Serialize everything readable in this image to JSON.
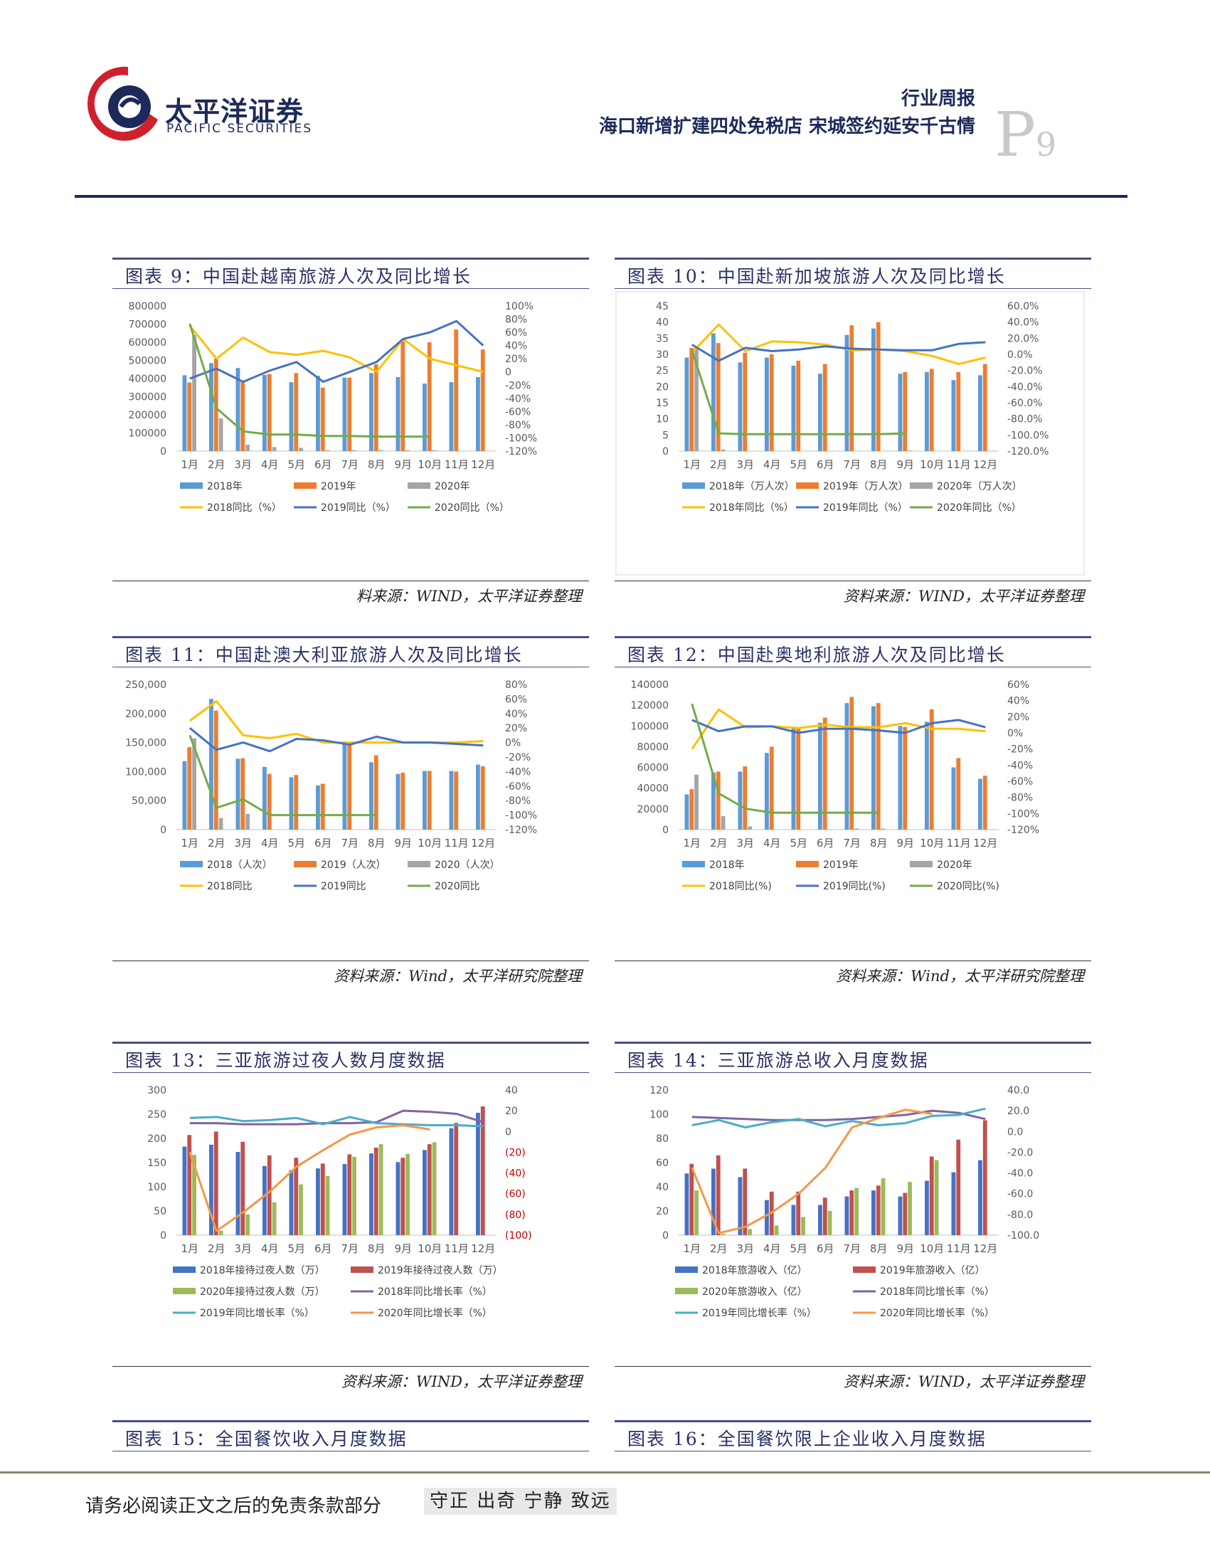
{
  "header": {
    "brand_cn": "太平洋证券",
    "brand_en": "PACIFIC SECURITIES",
    "report_type": "行业周报",
    "report_title": "海口新增扩建四处免税店 宋城签约延安千古情",
    "page_letter": "P",
    "page_number": "9",
    "brand_colors": {
      "navy": "#1c2a5a",
      "red": "#d0202e"
    }
  },
  "charts": [
    {
      "id": "chart9",
      "title": "图表 9：中国赴越南旅游人次及同比增长",
      "source": "料来源：WIND，太平洋证券整理",
      "chart_data": {
        "type": "bar",
        "categories": [
          "1月",
          "2月",
          "3月",
          "4月",
          "5月",
          "6月",
          "7月",
          "8月",
          "9月",
          "10月",
          "11月",
          "12月"
        ],
        "y_left": {
          "range": [
            0,
            800000
          ],
          "ticks": [
            "800000",
            "700000",
            "600000",
            "500000",
            "400000",
            "300000",
            "200000",
            "100000",
            "0"
          ]
        },
        "y_right": {
          "range": [
            -120,
            100
          ],
          "ticks": [
            "100%",
            "80%",
            "60%",
            "40%",
            "20%",
            "0",
            "-20%",
            "-40%",
            "-60%",
            "-80%",
            "-100%",
            "-120%"
          ]
        },
        "bars": [
          {
            "name": "2018年",
            "color": "#5b9bd5",
            "values": [
              418000,
              485000,
              458000,
              420000,
              380000,
              415000,
              405000,
              430000,
              408000,
              372000,
              380000,
              408000
            ]
          },
          {
            "name": "2019年",
            "color": "#ed7d31",
            "values": [
              378000,
              510000,
              385000,
              425000,
              430000,
              350000,
              405000,
              478000,
              605000,
              600000,
              670000,
              560000
            ]
          },
          {
            "name": "2020年",
            "color": "#a5a5a5",
            "values": [
              640000,
              180000,
              35000,
              22000,
              18000,
              5000,
              5000,
              5000,
              5000,
              5000,
              null,
              null
            ]
          }
        ],
        "lines": [
          {
            "name": "2018同比（%）",
            "color": "#ffc000",
            "values": [
              70,
              20,
              52,
              30,
              26,
              32,
              22,
              0,
              50,
              20,
              10,
              0
            ]
          },
          {
            "name": "2019同比（%）",
            "color": "#4472c4",
            "values": [
              -10,
              5,
              -15,
              2,
              15,
              -15,
              0,
              15,
              50,
              60,
              77,
              40
            ]
          },
          {
            "name": "2020同比（%）",
            "color": "#70ad47",
            "values": [
              73,
              -55,
              -90,
              -95,
              -95,
              -97,
              -97,
              -98,
              -98,
              -98,
              null,
              null
            ]
          }
        ]
      }
    },
    {
      "id": "chart10",
      "title": "图表 10：中国赴新加坡旅游人次及同比增长",
      "source": "资料来源：WIND，太平洋证券整理",
      "chart_data": {
        "type": "bar",
        "categories": [
          "1月",
          "2月",
          "3月",
          "4月",
          "5月",
          "6月",
          "7月",
          "8月",
          "9月",
          "10月",
          "11月",
          "12月"
        ],
        "y_left": {
          "range": [
            0,
            45
          ],
          "ticks": [
            "45",
            "40",
            "35",
            "30",
            "25",
            "20",
            "15",
            "10",
            "5",
            "0"
          ]
        },
        "y_right": {
          "range": [
            -120,
            60
          ],
          "ticks": [
            "60.0%",
            "40.0%",
            "20.0%",
            "0.0%",
            "-20.0%",
            "-40.0%",
            "-60.0%",
            "-80.0%",
            "-100.0%",
            "-120.0%"
          ]
        },
        "bars": [
          {
            "name": "2018年（万人次）",
            "color": "#5b9bd5",
            "values": [
              29.0,
              36.5,
              27.5,
              29.0,
              26.5,
              24.0,
              36.0,
              38.0,
              24.0,
              24.5,
              22.0,
              23.5
            ]
          },
          {
            "name": "2019年（万人次）",
            "color": "#ed7d31",
            "values": [
              32.0,
              33.5,
              30.5,
              30.0,
              28.0,
              27.0,
              39.0,
              40.0,
              24.5,
              25.5,
              24.5,
              27.0
            ]
          },
          {
            "name": "2020年（万人次）",
            "color": "#a5a5a5",
            "values": [
              32.5,
              0.5,
              null,
              null,
              null,
              null,
              null,
              null,
              0.2,
              null,
              null,
              null
            ]
          }
        ],
        "lines": [
          {
            "name": "2018年同比（%）",
            "color": "#ffc000",
            "values": [
              2,
              37,
              4,
              16,
              15,
              12,
              5,
              6,
              4,
              -2,
              -12,
              -4
            ]
          },
          {
            "name": "2019年同比（%）",
            "color": "#4472c4",
            "values": [
              12,
              -8,
              8,
              4,
              6,
              10,
              7,
              6,
              5,
              5,
              13,
              15
            ]
          },
          {
            "name": "2020年同比（%）",
            "color": "#70ad47",
            "values": [
              5,
              -98,
              -99,
              -99,
              -99,
              -99,
              -99,
              -99,
              -98,
              null,
              null,
              null
            ]
          }
        ]
      }
    },
    {
      "id": "chart11",
      "title": "图表 11：中国赴澳大利亚旅游人次及同比增长",
      "source": "资料来源：Wind，太平洋研究院整理",
      "chart_data": {
        "type": "bar",
        "categories": [
          "1月",
          "2月",
          "3月",
          "4月",
          "5月",
          "6月",
          "7月",
          "8月",
          "9月",
          "10月",
          "11月",
          "12月"
        ],
        "y_left": {
          "range": [
            0,
            250000
          ],
          "ticks": [
            "250,000",
            "200,000",
            "150,000",
            "100,000",
            "50,000",
            "0"
          ]
        },
        "y_right": {
          "range": [
            -120,
            80
          ],
          "ticks": [
            "80%",
            "60%",
            "40%",
            "20%",
            "0%",
            "-20%",
            "-40%",
            "-60%",
            "-80%",
            "-100%",
            "-120%"
          ]
        },
        "bars": [
          {
            "name": "2018（人次）",
            "color": "#5b9bd5",
            "values": [
              118000,
              225000,
              122000,
              108000,
              90000,
              76000,
              152000,
              116000,
              96000,
              101000,
              101000,
              112000
            ]
          },
          {
            "name": "2019（人次）",
            "color": "#ed7d31",
            "values": [
              142000,
              205000,
              123000,
              96000,
              94000,
              79000,
              148000,
              128000,
              98000,
              101000,
              100000,
              109000
            ]
          },
          {
            "name": "2020（人次）",
            "color": "#a5a5a5",
            "values": [
              157000,
              20000,
              27000,
              null,
              null,
              null,
              null,
              null,
              null,
              null,
              null,
              null
            ]
          }
        ],
        "lines": [
          {
            "name": "2018同比",
            "color": "#ffc000",
            "values": [
              30,
              57,
              10,
              6,
              12,
              0,
              0,
              0,
              0,
              0,
              0,
              2
            ]
          },
          {
            "name": "2019同比",
            "color": "#4472c4",
            "values": [
              20,
              -10,
              0,
              -12,
              5,
              3,
              -3,
              8,
              0,
              0,
              -2,
              -4
            ]
          },
          {
            "name": "2020同比",
            "color": "#70ad47",
            "values": [
              10,
              -90,
              -78,
              -100,
              -100,
              -100,
              -100,
              -100,
              null,
              null,
              null,
              null
            ]
          }
        ]
      }
    },
    {
      "id": "chart12",
      "title": "图表 12：中国赴奥地利旅游人次及同比增长",
      "source": "资料来源：Wind，太平洋研究院整理",
      "chart_data": {
        "type": "bar",
        "categories": [
          "1月",
          "2月",
          "3月",
          "4月",
          "5月",
          "6月",
          "7月",
          "8月",
          "9月",
          "10月",
          "11月",
          "12月"
        ],
        "y_left": {
          "range": [
            0,
            140000
          ],
          "ticks": [
            "140000",
            "120000",
            "100000",
            "80000",
            "60000",
            "40000",
            "20000",
            "0"
          ]
        },
        "y_right": {
          "range": [
            -120,
            60
          ],
          "ticks": [
            "60%",
            "40%",
            "20%",
            "0%",
            "-20%",
            "-40%",
            "-60%",
            "-80%",
            "-100%",
            "-120%"
          ]
        },
        "bars": [
          {
            "name": "2018年",
            "color": "#5b9bd5",
            "values": [
              34000,
              55000,
              56000,
              74000,
              98000,
              103000,
              122000,
              119000,
              100000,
              104000,
              60000,
              49000
            ]
          },
          {
            "name": "2019年",
            "color": "#ed7d31",
            "values": [
              39000,
              56000,
              61000,
              80000,
              98000,
              108000,
              128000,
              122000,
              99000,
              116000,
              69000,
              52000
            ]
          },
          {
            "name": "2020年",
            "color": "#a5a5a5",
            "values": [
              53000,
              13000,
              3000,
              null,
              null,
              null,
              1000,
              1000,
              null,
              null,
              null,
              null
            ]
          }
        ],
        "lines": [
          {
            "name": "2018同比(%)",
            "color": "#ffc000",
            "values": [
              -20,
              29,
              7,
              8,
              6,
              10,
              7,
              7,
              12,
              5,
              5,
              2
            ]
          },
          {
            "name": "2019同比(%)",
            "color": "#4472c4",
            "values": [
              16,
              2,
              8,
              8,
              0,
              5,
              5,
              3,
              0,
              12,
              16,
              7
            ]
          },
          {
            "name": "2020同比(%)",
            "color": "#70ad47",
            "values": [
              36,
              -75,
              -94,
              -99,
              -99,
              -99,
              -99,
              -99,
              null,
              null,
              null,
              null
            ]
          }
        ]
      }
    },
    {
      "id": "chart13",
      "title": "图表 13：三亚旅游过夜人数月度数据",
      "source": "资料来源：WIND，太平洋证券整理",
      "chart_data": {
        "type": "bar",
        "categories": [
          "1月",
          "2月",
          "3月",
          "4月",
          "5月",
          "6月",
          "7月",
          "8月",
          "9月",
          "10月",
          "11月",
          "12月"
        ],
        "y_left": {
          "range": [
            0,
            300
          ],
          "ticks": [
            "300",
            "250",
            "200",
            "150",
            "100",
            "50",
            "0"
          ]
        },
        "y_right": {
          "range": [
            -100,
            40
          ],
          "ticks": [
            "40",
            "20",
            "0",
            "(20)",
            "(40)",
            "(60)",
            "(80)",
            "(100)"
          ]
        },
        "bars": [
          {
            "name": "2018年接待过夜人数（万）",
            "color": "#4472c4",
            "values": [
              183,
              187,
              172,
              143,
              134,
              138,
              147,
              169,
              151,
              176,
              221,
              253
            ]
          },
          {
            "name": "2019年接待过夜人数（万）",
            "color": "#c0504d",
            "values": [
              207,
              214,
              193,
              165,
              160,
              148,
              167,
              181,
              160,
              188,
              232,
              266
            ]
          },
          {
            "name": "2020年接待过夜人数（万）",
            "color": "#9bbb59",
            "values": [
              166,
              9,
              43,
              68,
              105,
              122,
              162,
              188,
              168,
              192,
              null,
              null
            ]
          }
        ],
        "lines": [
          {
            "name": "2018年同比增长率（%）",
            "color": "#8064a2",
            "values": [
              8,
              8,
              7,
              7,
              7,
              8,
              8,
              9,
              20,
              19,
              17,
              9
            ]
          },
          {
            "name": "2019年同比增长率（%）",
            "color": "#4bacc6",
            "values": [
              13,
              14,
              10,
              11,
              13,
              7,
              14,
              8,
              7,
              6,
              6,
              5
            ]
          },
          {
            "name": "2020年同比增长率（%）",
            "color": "#f79646",
            "values": [
              -20,
              -96,
              -78,
              -58,
              -34,
              -18,
              -3,
              4,
              6,
              2,
              null,
              null
            ]
          }
        ]
      }
    },
    {
      "id": "chart14",
      "title": "图表 14：三亚旅游总收入月度数据",
      "source": "资料来源：WIND，太平洋证券整理",
      "chart_data": {
        "type": "bar",
        "categories": [
          "1月",
          "2月",
          "3月",
          "4月",
          "5月",
          "6月",
          "7月",
          "8月",
          "9月",
          "10月",
          "11月",
          "12月"
        ],
        "y_left": {
          "range": [
            0,
            120
          ],
          "ticks": [
            "120",
            "100",
            "80",
            "60",
            "40",
            "20",
            "0"
          ]
        },
        "y_right": {
          "range": [
            -100,
            40
          ],
          "ticks": [
            "40.0",
            "20.0",
            "0.0",
            "-20.0",
            "-40.0",
            "-60.0",
            "-80.0",
            "-100.0"
          ]
        },
        "bars": [
          {
            "name": "2018年旅游收入（亿）",
            "color": "#4472c4",
            "values": [
              51,
              55,
              48,
              29,
              25,
              25,
              32,
              37,
              32,
              45,
              52,
              62
            ]
          },
          {
            "name": "2019年旅游收入（亿）",
            "color": "#c0504d",
            "values": [
              59,
              66,
              55,
              36,
              36,
              31,
              37,
              41,
              35,
              65,
              79,
              95
            ]
          },
          {
            "name": "2020年旅游收入（亿）",
            "color": "#9bbb59",
            "values": [
              37,
              1,
              5,
              8,
              15,
              20,
              39,
              47,
              44,
              62,
              null,
              null
            ]
          }
        ],
        "lines": [
          {
            "name": "2018年同比增长率（%）",
            "color": "#8064a2",
            "values": [
              14,
              13,
              12,
              11,
              11,
              11,
              12,
              14,
              16,
              20,
              18,
              12
            ]
          },
          {
            "name": "2019年同比增长率（%）",
            "color": "#4bacc6",
            "values": [
              6,
              11,
              4,
              9,
              12,
              5,
              10,
              6,
              8,
              15,
              16,
              22
            ]
          },
          {
            "name": "2020年同比增长率（%）",
            "color": "#f79646",
            "values": [
              -35,
              -98,
              -92,
              -78,
              -60,
              -35,
              4,
              13,
              21,
              17,
              null,
              null
            ]
          }
        ]
      }
    },
    {
      "id": "chart15",
      "title": "图表 15：全国餐饮收入月度数据"
    },
    {
      "id": "chart16",
      "title": "图表 16：全国餐饮限上企业收入月度数据"
    }
  ],
  "footer": {
    "disclaimer": "请务必阅读正文之后的免责条款部分",
    "motto": "守正 出奇 宁静 致远"
  }
}
